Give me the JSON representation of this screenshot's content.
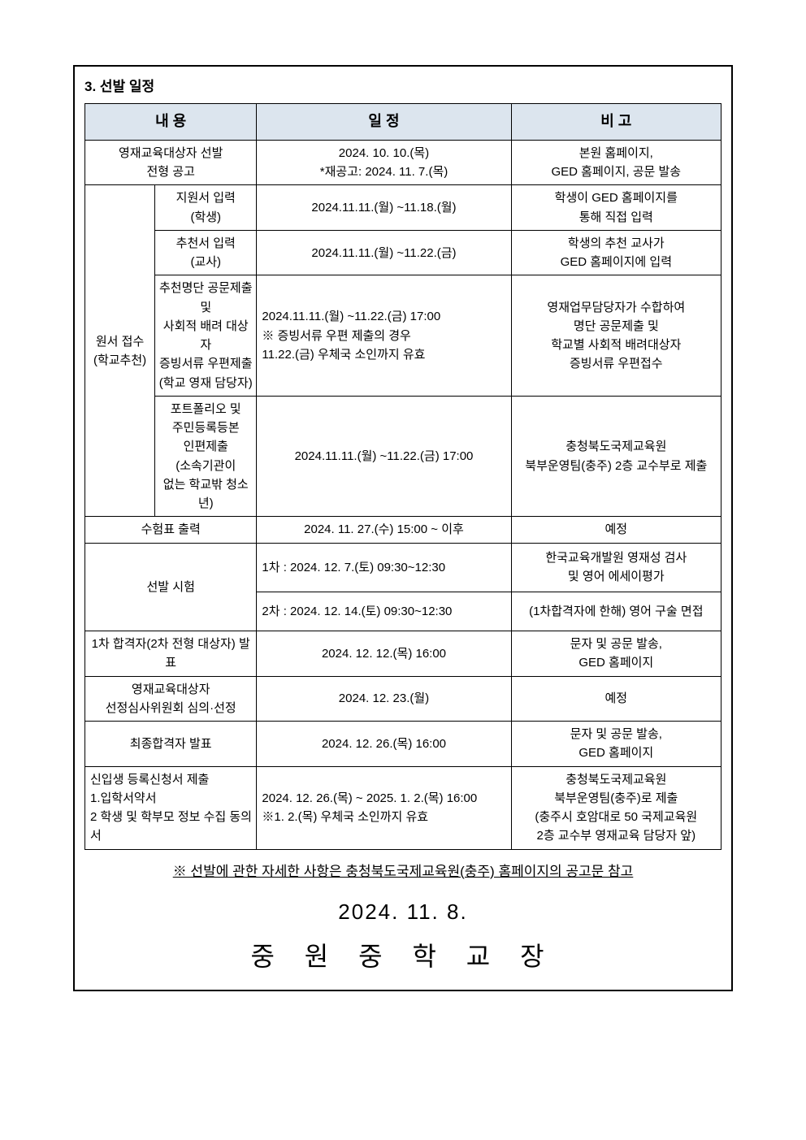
{
  "section_title": "3. 선발 일정",
  "headers": {
    "h1": "내 용",
    "h2": "일 정",
    "h3": "비  고"
  },
  "rows": {
    "r1": {
      "col1": "영재교육대상자 선발\n전형 공고",
      "col2": "2024. 10. 10.(목)\n*재공고: 2024. 11. 7.(목)",
      "col3": "본원 홈페이지,\nGED 홈페이지, 공문 발송"
    },
    "group_label": "원서 접수\n(학교추천)",
    "r2a": {
      "sub": "지원서 입력\n(학생)",
      "col2": "2024.11.11.(월) ~11.18.(월)",
      "col3": "학생이 GED 홈페이지를\n통해 직접 입력"
    },
    "r2b": {
      "sub": "추천서 입력\n(교사)",
      "col2": "2024.11.11.(월) ~11.22.(금)",
      "col3": "학생의 추천 교사가\nGED 홈페이지에 입력"
    },
    "r2c": {
      "sub": "추천명단 공문제출 및\n사회적 배려 대상자\n증빙서류 우편제출\n(학교 영재 담당자)",
      "col2": "2024.11.11.(월) ~11.22.(금) 17:00\n※ 증빙서류 우편 제출의 경우\n11.22.(금) 우체국 소인까지 유효",
      "col3": "영재업무담당자가 수합하여\n명단 공문제출 및\n학교별 사회적 배려대상자\n증빙서류 우편접수"
    },
    "r2d": {
      "sub": "포트폴리오 및\n주민등록등본\n인편제출\n(소속기관이\n없는 학교밖 청소년)",
      "col2": "2024.11.11.(월) ~11.22.(금) 17:00",
      "col3": "충청북도국제교육원\n북부운영팀(충주) 2층 교수부로 제출"
    },
    "r3": {
      "col1": "수험표 출력",
      "col2": "2024. 11. 27.(수) 15:00 ~ 이후",
      "col3": "예정"
    },
    "r4": {
      "col1": "선발 시험",
      "row1_col2": "1차 : 2024. 12. 7.(토) 09:30~12:30",
      "row1_col3": "한국교육개발원 영재성 검사\n및 영어 에세이평가",
      "row2_col2": "2차 : 2024. 12. 14.(토) 09:30~12:30",
      "row2_col3": "(1차합격자에 한해) 영어 구술 면접"
    },
    "r5": {
      "col1": "1차 합격자(2차 전형 대상자) 발표",
      "col2": "2024. 12. 12.(목) 16:00",
      "col3": "문자 및 공문 발송,\nGED 홈페이지"
    },
    "r6": {
      "col1": "영재교육대상자\n선정심사위원회 심의·선정",
      "col2": "2024. 12. 23.(월)",
      "col3": "예정"
    },
    "r7": {
      "col1": "최종합격자 발표",
      "col2": "2024. 12. 26.(목) 16:00",
      "col3": "문자 및 공문 발송,\nGED 홈페이지"
    },
    "r8": {
      "col1": "신입생 등록신청서 제출\n1.입학서약서\n2 학생 및 학부모 정보 수집 동의서",
      "col2": "2024. 12. 26.(목) ~ 2025. 1. 2.(목) 16:00\n※1. 2.(목) 우체국 소인까지 유효",
      "col3": "충청북도국제교육원\n북부운영팀(충주)로 제출\n(충주시 호암대로 50 국제교육원\n2층 교수부 영재교육 담당자 앞)"
    }
  },
  "footer_note": "※ 선발에 관한 자세한 사항은 충청북도국제교육원(충주) 홈페이지의 공고문 참고",
  "big_date": "2024. 11. 8.",
  "signature": "중 원 중 학 교 장"
}
